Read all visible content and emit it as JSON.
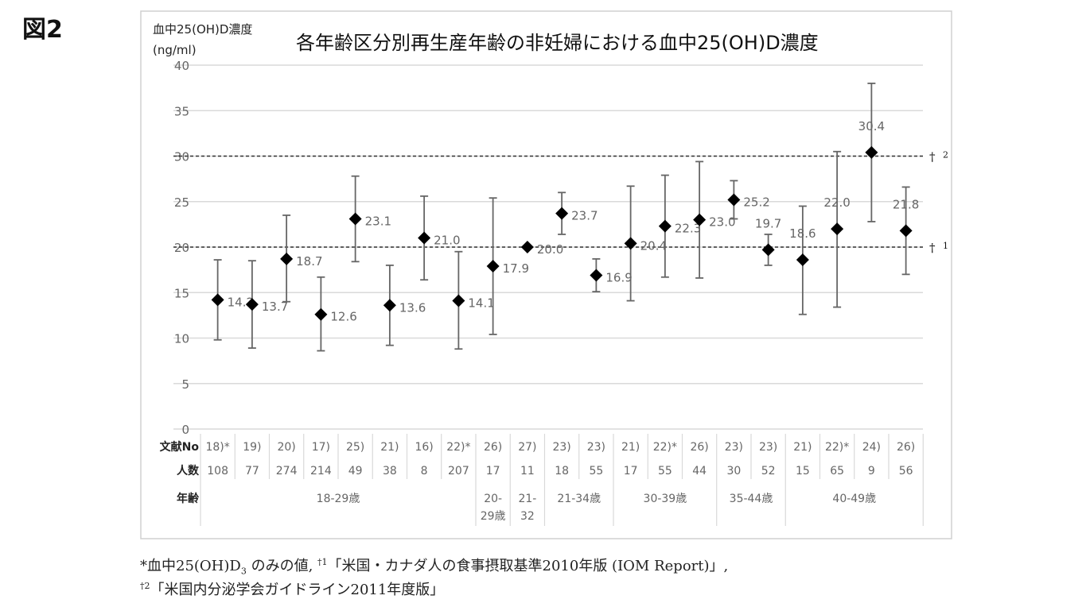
{
  "figure_label": "図2",
  "chart_data": {
    "type": "scatter",
    "title": "各年齢区分別再生産年齢の非妊婦における血中25(OH)D濃度",
    "ylabel": "血中25(OH)D濃度",
    "yunit": "(ng/ml)",
    "ylim": [
      0,
      40
    ],
    "yticks": [
      0,
      5,
      10,
      15,
      20,
      25,
      30,
      35,
      40
    ],
    "grid": true,
    "reference_lines": [
      {
        "value": 20,
        "label": "†",
        "sup": "1"
      },
      {
        "value": 30,
        "label": "†",
        "sup": "2"
      }
    ],
    "table_row_labels": {
      "refs": "文献No",
      "n": "人数",
      "age": "年齢"
    },
    "points": [
      {
        "ref": "18)*",
        "n": "108",
        "mean": 14.2,
        "label": "14.2",
        "low": 9.8,
        "high": 18.6
      },
      {
        "ref": "19)",
        "n": "77",
        "mean": 13.7,
        "label": "13.7",
        "low": 8.9,
        "high": 18.5
      },
      {
        "ref": "20)",
        "n": "274",
        "mean": 18.7,
        "label": "18.7",
        "low": 14.0,
        "high": 23.5
      },
      {
        "ref": "17)",
        "n": "214",
        "mean": 12.6,
        "label": "12.6",
        "low": 8.6,
        "high": 16.7
      },
      {
        "ref": "25)",
        "n": "49",
        "mean": 23.1,
        "label": "23.1",
        "low": 18.4,
        "high": 27.8
      },
      {
        "ref": "21)",
        "n": "38",
        "mean": 13.6,
        "label": "13.6",
        "low": 9.2,
        "high": 18.0
      },
      {
        "ref": "16)",
        "n": "8",
        "mean": 21.0,
        "label": "21.0",
        "low": 16.4,
        "high": 25.6
      },
      {
        "ref": "22)*",
        "n": "207",
        "mean": 14.1,
        "label": "14.1",
        "low": 8.8,
        "high": 19.5
      },
      {
        "ref": "26)",
        "n": "17",
        "mean": 17.9,
        "label": "17.9",
        "low": 10.4,
        "high": 25.4
      },
      {
        "ref": "27)",
        "n": "11",
        "mean": 20.0,
        "label": "20.0",
        "low": null,
        "high": null
      },
      {
        "ref": "23)",
        "n": "18",
        "mean": 23.7,
        "label": "23.7",
        "low": 21.4,
        "high": 26.0
      },
      {
        "ref": "23)",
        "n": "55",
        "mean": 16.9,
        "label": "16.9",
        "low": 15.1,
        "high": 18.7
      },
      {
        "ref": "21)",
        "n": "17",
        "mean": 20.4,
        "label": "20.4",
        "low": 14.1,
        "high": 26.7
      },
      {
        "ref": "22)*",
        "n": "55",
        "mean": 22.3,
        "label": "22.3",
        "low": 16.7,
        "high": 27.9
      },
      {
        "ref": "26)",
        "n": "44",
        "mean": 23.0,
        "label": "23.0",
        "low": 16.6,
        "high": 29.4
      },
      {
        "ref": "23)",
        "n": "30",
        "mean": 25.2,
        "label": "25.2",
        "low": 23.1,
        "high": 27.3
      },
      {
        "ref": "23)",
        "n": "52",
        "mean": 19.7,
        "label": "19.7",
        "low": 18.0,
        "high": 21.4
      },
      {
        "ref": "21)",
        "n": "15",
        "mean": 18.6,
        "label": "18.6",
        "low": 12.6,
        "high": 24.5
      },
      {
        "ref": "22)*",
        "n": "65",
        "mean": 22.0,
        "label": "22.0",
        "low": 13.4,
        "high": 30.5
      },
      {
        "ref": "24)",
        "n": "9",
        "mean": 30.4,
        "label": "30.4",
        "low": 22.8,
        "high": 38.0
      },
      {
        "ref": "26)",
        "n": "56",
        "mean": 21.8,
        "label": "21.8",
        "low": 17.0,
        "high": 26.6
      }
    ],
    "age_groups": [
      {
        "lines": [
          "18-29歳"
        ],
        "count": 8
      },
      {
        "lines": [
          "20-",
          "29歳"
        ],
        "count": 1
      },
      {
        "lines": [
          "21-",
          "32"
        ],
        "count": 1
      },
      {
        "lines": [
          "21-34歳"
        ],
        "count": 2
      },
      {
        "lines": [
          "30-39歳"
        ],
        "count": 3
      },
      {
        "lines": [
          "35-44歳"
        ],
        "count": 2
      },
      {
        "lines": [
          "40-49歳"
        ],
        "count": 4
      }
    ]
  },
  "footnote": {
    "line1_pre": "*血中25(OH)D",
    "line1_sub": "3",
    "line1_mid": " のみの値, ",
    "line1_dagger": "†1",
    "line1_post": "「米国・カナダ人の食事摂取基準2010年版 (IOM Report)」,",
    "line2_dagger": "†2",
    "line2_post": "「米国内分泌学会ガイドライン2011年度版」"
  }
}
